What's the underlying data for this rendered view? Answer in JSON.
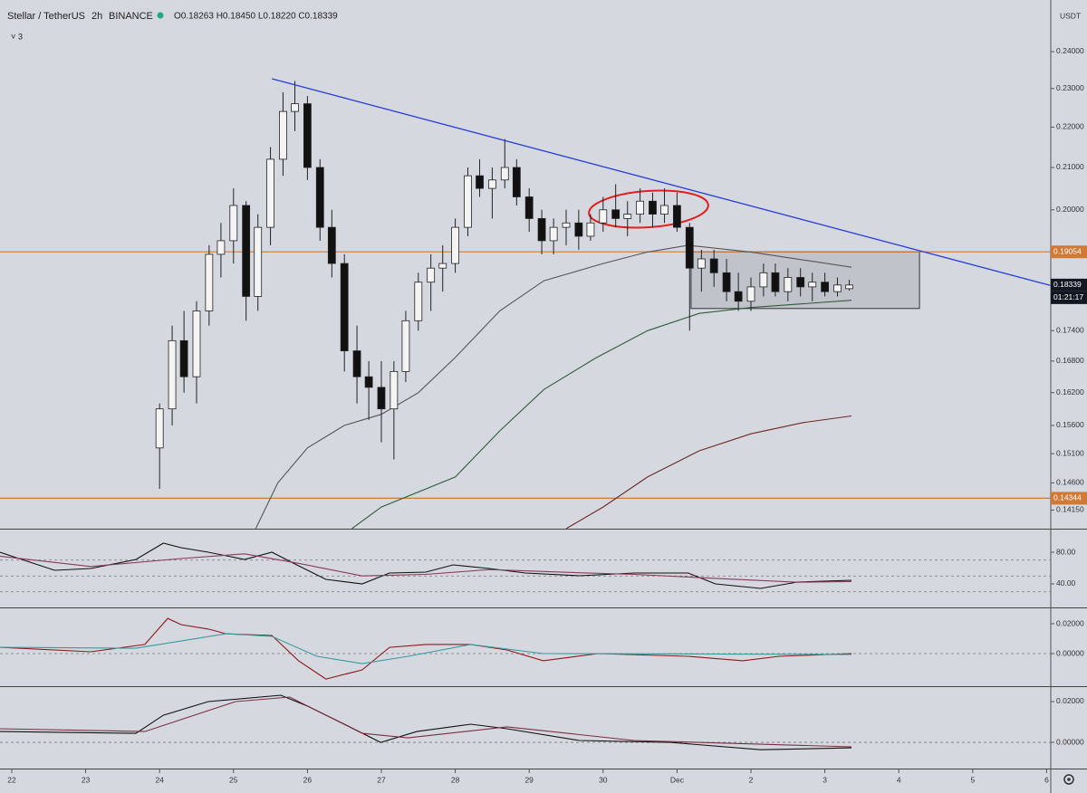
{
  "chart_data": [
    {
      "type": "candlestick",
      "title": "Stellar / TetherUS",
      "interval": "2h",
      "exchange": "BINANCE",
      "ohlc": "O0.18263 H0.18450 L0.18220 C0.18339",
      "legend_count": 3,
      "currency": "USDT",
      "log_scale": true,
      "grid": false,
      "xlim": [
        -0.159,
        14.056
      ],
      "ylim": [
        0.1385,
        0.2547
      ],
      "xticks": [
        {
          "value": 0,
          "label": "22"
        },
        {
          "value": 1,
          "label": "23"
        },
        {
          "value": 2,
          "label": "24"
        },
        {
          "value": 3,
          "label": "25"
        },
        {
          "value": 4,
          "label": "26"
        },
        {
          "value": 5,
          "label": "27"
        },
        {
          "value": 6,
          "label": "28"
        },
        {
          "value": 7,
          "label": "29"
        },
        {
          "value": 8,
          "label": "30"
        },
        {
          "value": 9,
          "label": "Dec"
        },
        {
          "value": 10,
          "label": "2"
        },
        {
          "value": 11,
          "label": "3"
        },
        {
          "value": 12,
          "label": "4"
        },
        {
          "value": 13,
          "label": "5"
        },
        {
          "value": 14,
          "label": "6"
        }
      ],
      "yticks": [
        {
          "value": 0.24,
          "label": "0.24000"
        },
        {
          "value": 0.23,
          "label": "0.23000"
        },
        {
          "value": 0.22,
          "label": "0.22000"
        },
        {
          "value": 0.21,
          "label": "0.21000"
        },
        {
          "value": 0.2,
          "label": "0.20000"
        },
        {
          "value": 0.174,
          "label": "0.17400"
        },
        {
          "value": 0.168,
          "label": "0.16800"
        },
        {
          "value": 0.162,
          "label": "0.16200"
        },
        {
          "value": 0.156,
          "label": "0.15600"
        },
        {
          "value": 0.151,
          "label": "0.15100"
        },
        {
          "value": 0.146,
          "label": "0.14600"
        },
        {
          "value": 0.1415,
          "label": "0.14150"
        }
      ],
      "candles": {
        "up_color": "#f4f4f4",
        "down_color": "#111111",
        "outline": "#222222",
        "x": [
          2.0,
          2.17,
          2.33,
          2.5,
          2.67,
          2.83,
          3.0,
          3.17,
          3.33,
          3.5,
          3.67,
          3.83,
          4.0,
          4.17,
          4.33,
          4.5,
          4.67,
          4.83,
          5.0,
          5.17,
          5.33,
          5.5,
          5.67,
          5.83,
          6.0,
          6.17,
          6.33,
          6.5,
          6.67,
          6.83,
          7.0,
          7.17,
          7.33,
          7.5,
          7.67,
          7.83,
          8.0,
          8.17,
          8.33,
          8.5,
          8.67,
          8.83,
          9.0,
          9.17,
          9.33,
          9.5,
          9.67,
          9.83,
          10.0,
          10.17,
          10.33,
          10.5,
          10.67,
          10.83,
          11.0,
          11.17,
          11.33
        ],
        "open": [
          0.152,
          0.159,
          0.172,
          0.165,
          0.178,
          0.19,
          0.193,
          0.201,
          0.181,
          0.196,
          0.212,
          0.224,
          0.226,
          0.21,
          0.196,
          0.188,
          0.17,
          0.165,
          0.163,
          0.159,
          0.166,
          0.176,
          0.184,
          0.187,
          0.188,
          0.196,
          0.208,
          0.205,
          0.207,
          0.21,
          0.203,
          0.198,
          0.193,
          0.196,
          0.197,
          0.194,
          0.197,
          0.2,
          0.198,
          0.199,
          0.202,
          0.199,
          0.201,
          0.196,
          0.187,
          0.189,
          0.186,
          0.182,
          0.18,
          0.183,
          0.186,
          0.182,
          0.185,
          0.183,
          0.184,
          0.182,
          0.18263
        ],
        "high": [
          0.16,
          0.175,
          0.178,
          0.18,
          0.192,
          0.197,
          0.205,
          0.202,
          0.199,
          0.215,
          0.229,
          0.232,
          0.228,
          0.212,
          0.2,
          0.19,
          0.175,
          0.168,
          0.168,
          0.168,
          0.178,
          0.186,
          0.19,
          0.192,
          0.198,
          0.21,
          0.212,
          0.21,
          0.217,
          0.212,
          0.205,
          0.2,
          0.198,
          0.2,
          0.2,
          0.199,
          0.203,
          0.206,
          0.202,
          0.205,
          0.204,
          0.205,
          0.204,
          0.197,
          0.191,
          0.191,
          0.189,
          0.186,
          0.185,
          0.188,
          0.188,
          0.187,
          0.187,
          0.186,
          0.186,
          0.185,
          0.1845
        ],
        "low": [
          0.145,
          0.156,
          0.162,
          0.16,
          0.175,
          0.185,
          0.188,
          0.176,
          0.178,
          0.192,
          0.208,
          0.219,
          0.207,
          0.193,
          0.185,
          0.166,
          0.16,
          0.157,
          0.153,
          0.15,
          0.164,
          0.174,
          0.178,
          0.182,
          0.186,
          0.194,
          0.203,
          0.198,
          0.205,
          0.201,
          0.195,
          0.19,
          0.19,
          0.192,
          0.191,
          0.193,
          0.195,
          0.196,
          0.194,
          0.197,
          0.196,
          0.197,
          0.195,
          0.174,
          0.182,
          0.183,
          0.18,
          0.178,
          0.178,
          0.181,
          0.181,
          0.18,
          0.181,
          0.18,
          0.181,
          0.181,
          0.1822
        ],
        "close": [
          0.159,
          0.172,
          0.165,
          0.178,
          0.19,
          0.193,
          0.201,
          0.181,
          0.196,
          0.212,
          0.224,
          0.226,
          0.21,
          0.196,
          0.188,
          0.17,
          0.165,
          0.163,
          0.159,
          0.166,
          0.176,
          0.184,
          0.187,
          0.188,
          0.196,
          0.208,
          0.205,
          0.207,
          0.21,
          0.203,
          0.198,
          0.193,
          0.196,
          0.197,
          0.194,
          0.197,
          0.2,
          0.198,
          0.199,
          0.202,
          0.199,
          0.201,
          0.196,
          0.187,
          0.189,
          0.186,
          0.182,
          0.18,
          0.183,
          0.186,
          0.182,
          0.185,
          0.183,
          0.184,
          0.182,
          0.1834,
          0.18339
        ]
      },
      "series": [
        {
          "color": "#555555",
          "x": [
            3.3,
            3.6,
            4.0,
            4.5,
            5.0,
            5.5,
            6.0,
            6.6,
            7.2,
            8.0,
            8.6,
            9.15,
            10.0,
            11.36
          ],
          "values": [
            0.1385,
            0.146,
            0.152,
            0.156,
            0.158,
            0.162,
            0.1687,
            0.178,
            0.1843,
            0.188,
            0.1905,
            0.192,
            0.1905,
            0.1872
          ]
        },
        {
          "color": "#2f5d35",
          "x": [
            4.6,
            5.0,
            6.0,
            6.6,
            7.2,
            7.9,
            8.6,
            9.3,
            10.0,
            11.36
          ],
          "values": [
            0.1385,
            0.142,
            0.147,
            0.155,
            0.1626,
            0.1686,
            0.174,
            0.1775,
            0.1787,
            0.1802
          ]
        },
        {
          "color": "#6b2a24",
          "x": [
            7.5,
            8.0,
            8.6,
            9.3,
            10.0,
            10.7,
            11.36
          ],
          "values": [
            0.1385,
            0.142,
            0.147,
            0.1515,
            0.1545,
            0.1565,
            0.1577
          ]
        }
      ],
      "hlines": [
        {
          "value": 0.19054,
          "color": "#d07a36"
        },
        {
          "value": 0.14344,
          "color": "#d07a36"
        }
      ],
      "trendline": {
        "color": "#2a3fd8",
        "x": [
          3.52,
          14.05
        ],
        "values": [
          0.2326,
          0.1833
        ]
      },
      "box": {
        "x": [
          9.19,
          12.28
        ],
        "values": [
          0.19054,
          0.1785
        ]
      },
      "price_labels": [
        {
          "value": 0.19054,
          "label": "0.19054",
          "color": "#d07a36"
        },
        {
          "value": 0.18339,
          "label": "0.18339",
          "color": "#131722",
          "countdown": "01:21:17"
        },
        {
          "value": 0.14344,
          "label": "0.14344",
          "color": "#d07a36"
        }
      ]
    },
    {
      "type": "line",
      "xlim": [
        -0.159,
        14.056
      ],
      "ylim": [
        11.4,
        108.6
      ],
      "yticks": [
        {
          "value": 80,
          "label": "80.00"
        },
        {
          "value": 40,
          "label": "40.00"
        }
      ],
      "levels": [
        70,
        50,
        30
      ],
      "series": [
        {
          "color": "#111111",
          "x": [
            -0.16,
            0.58,
            1.07,
            1.68,
            2.05,
            2.29,
            2.66,
            3.15,
            3.52,
            3.88,
            4.25,
            4.74,
            5.11,
            5.6,
            5.97,
            6.46,
            6.95,
            7.68,
            8.42,
            9.15,
            9.52,
            10.13,
            10.63,
            11.36
          ],
          "values": [
            80,
            57.1,
            59.4,
            70.9,
            91.4,
            85.7,
            80,
            70.9,
            80,
            62.9,
            45.7,
            40,
            53.7,
            54.9,
            64,
            59.4,
            53.7,
            50.3,
            53.7,
            53.7,
            40,
            34.3,
            42.3,
            44.6
          ]
        },
        {
          "color": "#8a3a5a",
          "x": [
            -0.16,
            1.07,
            2.29,
            3.15,
            3.88,
            4.74,
            5.6,
            6.46,
            7.68,
            8.42,
            9.52,
            10.63,
            11.36
          ],
          "values": [
            75,
            62,
            72,
            78,
            66,
            50,
            52,
            58,
            54,
            52,
            47,
            42,
            43
          ]
        }
      ]
    },
    {
      "type": "line",
      "xlim": [
        -0.159,
        14.056
      ],
      "ylim": [
        -0.0212,
        0.0303
      ],
      "yticks": [
        {
          "value": 0.02,
          "label": "0.02000"
        },
        {
          "value": 0,
          "label": "0.00000"
        }
      ],
      "levels": [
        0
      ],
      "series": [
        {
          "color": "#8a1a1a",
          "x": [
            -0.16,
            1.07,
            1.8,
            2.11,
            2.29,
            2.66,
            2.9,
            3.52,
            3.88,
            4.25,
            4.74,
            5.11,
            5.6,
            6.21,
            6.7,
            7.19,
            7.93,
            9.15,
            9.89,
            10.38,
            11.36
          ],
          "values": [
            0.0042,
            0.0012,
            0.0061,
            0.0236,
            0.0194,
            0.0164,
            0.0133,
            0.0121,
            -0.0048,
            -0.017,
            -0.0109,
            0.0042,
            0.0061,
            0.0061,
            0.0024,
            -0.0048,
            0,
            -0.0018,
            -0.0048,
            -0.0018,
            0
          ]
        },
        {
          "color": "#3a9aa0",
          "x": [
            -0.16,
            1.68,
            2.9,
            3.52,
            4.13,
            4.74,
            5.36,
            6.21,
            7.19,
            11.36
          ],
          "values": [
            0.0042,
            0.0036,
            0.0133,
            0.0115,
            -0.0018,
            -0.0067,
            -0.0018,
            0.0061,
            0,
            -0.0006
          ]
        }
      ]
    },
    {
      "type": "line",
      "xlim": [
        -0.159,
        14.056
      ],
      "ylim": [
        -0.0124,
        0.0271
      ],
      "yticks": [
        {
          "value": 0.02,
          "label": "0.02000"
        },
        {
          "value": 0,
          "label": "0.00000"
        }
      ],
      "levels": [
        0
      ],
      "series": [
        {
          "color": "#111111",
          "x": [
            -0.16,
            1.68,
            2.05,
            2.66,
            3.64,
            4.0,
            4.5,
            4.99,
            5.48,
            6.21,
            6.7,
            7.68,
            8.91,
            10.13,
            11.36
          ],
          "values": [
            0.0053,
            0.0044,
            0.0133,
            0.02,
            0.0231,
            0.0178,
            0.0089,
            0,
            0.0053,
            0.0089,
            0.0067,
            0.0009,
            0,
            -0.0036,
            -0.0027
          ]
        },
        {
          "color": "#7a3040",
          "x": [
            -0.16,
            1.8,
            3.03,
            3.76,
            4.74,
            5.36,
            6.7,
            8.42,
            11.36
          ],
          "values": [
            0.0067,
            0.0053,
            0.02,
            0.0222,
            0.0044,
            0.0022,
            0.0076,
            0.0009,
            -0.0022
          ]
        }
      ]
    }
  ]
}
